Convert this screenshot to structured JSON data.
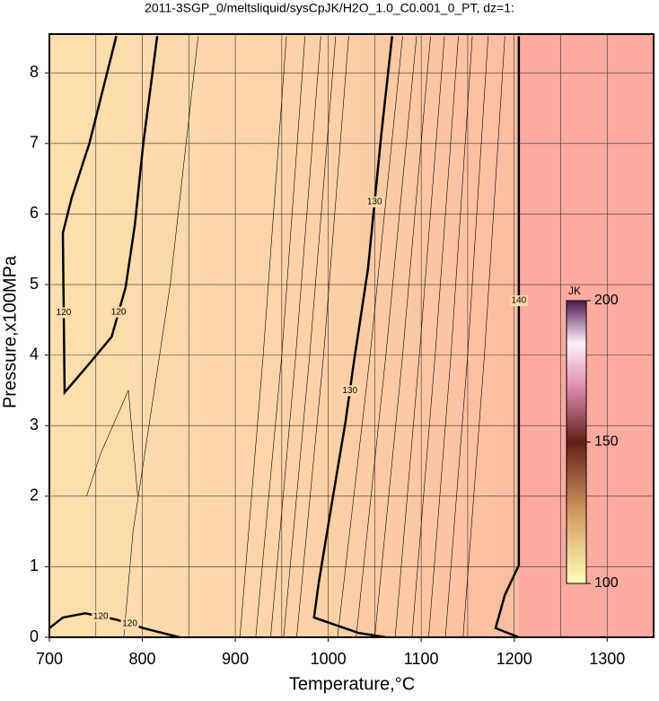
{
  "chart_data": {
    "type": "contour",
    "title": "2011-3SGP_0/meltsliquid/sysCpJK/H2O_1.0_C0.001_0_PT, dz=1:",
    "x_label": "Temperature,°C",
    "y_label": "Pressure,x100MPa",
    "xlim": [
      700,
      1350
    ],
    "ylim": [
      0,
      8.55
    ],
    "xticks": [
      700,
      800,
      900,
      1000,
      1100,
      1200,
      1300
    ],
    "xgrid": [
      750,
      850,
      950,
      1050,
      1150,
      1250
    ],
    "yticks": [
      0,
      1,
      2,
      3,
      4,
      5,
      6,
      7,
      8
    ],
    "grid": true,
    "contours": [
      {
        "level": 120,
        "x": [
          772,
          743,
          724,
          714.5,
          716.4,
          743,
          767,
          782,
          792,
          801,
          816
        ],
        "y": [
          8.52,
          7.0,
          6.23,
          5.73,
          3.47,
          3.88,
          4.26,
          4.96,
          5.85,
          7.0,
          8.52
        ]
      },
      {
        "level": 120,
        "x": [
          700,
          714.5,
          738.6,
          772,
          801,
          840
        ],
        "y": [
          0.13,
          0.28,
          0.34,
          0.25,
          0.13,
          0
        ]
      },
      {
        "level": 130,
        "x": [
          1062,
          1033,
          984.7,
          989.6,
          1004,
          1018.5,
          1028,
          1042.7,
          1057,
          1068.7
        ],
        "y": [
          0,
          0.06,
          0.28,
          0.76,
          1.91,
          3.05,
          3.94,
          5.22,
          7.12,
          8.52
        ]
      },
      {
        "level": 140,
        "x": [
          1205,
          1180,
          1190,
          1205,
          1205
        ],
        "y": [
          0,
          0.13,
          0.6,
          1.02,
          8.52
        ]
      }
    ],
    "minor_contours": [
      {
        "x": [
          905,
          930,
          955
        ],
        "y": [
          0,
          4,
          8.52
        ]
      },
      {
        "x": [
          922,
          950,
          975
        ],
        "y": [
          0,
          4,
          8.52
        ]
      },
      {
        "x": [
          938,
          965,
          992
        ],
        "y": [
          0,
          4,
          8.52
        ]
      },
      {
        "x": [
          952,
          980,
          1008
        ],
        "y": [
          0,
          4,
          8.52
        ]
      },
      {
        "x": [
          966,
          995,
          1022
        ],
        "y": [
          0,
          4,
          8.52
        ]
      },
      {
        "x": [
          1010,
          1045,
          1080
        ],
        "y": [
          0,
          4,
          8.52
        ]
      },
      {
        "x": [
          1030,
          1062,
          1095
        ],
        "y": [
          0,
          4,
          8.52
        ]
      },
      {
        "x": [
          1050,
          1080,
          1110
        ],
        "y": [
          0,
          4,
          8.52
        ]
      },
      {
        "x": [
          1072,
          1098,
          1125
        ],
        "y": [
          0,
          4,
          8.52
        ]
      },
      {
        "x": [
          1090,
          1115,
          1140
        ],
        "y": [
          0,
          4,
          8.52
        ]
      },
      {
        "x": [
          1108,
          1132,
          1155
        ],
        "y": [
          0,
          4,
          8.52
        ]
      },
      {
        "x": [
          1126,
          1150,
          1172
        ],
        "y": [
          0,
          4,
          8.52
        ]
      },
      {
        "x": [
          1145,
          1168,
          1190
        ],
        "y": [
          0,
          4,
          8.52
        ]
      },
      {
        "x": [
          780,
          790,
          830,
          860
        ],
        "y": [
          0,
          1.5,
          5,
          8.52
        ]
      },
      {
        "x": [
          740,
          755,
          785,
          795
        ],
        "y": [
          2.0,
          2.6,
          3.5,
          2.0
        ]
      }
    ],
    "colorbar": {
      "label": "JK",
      "lim": [
        100,
        200
      ],
      "ticks": [
        100,
        150,
        200
      ]
    }
  }
}
